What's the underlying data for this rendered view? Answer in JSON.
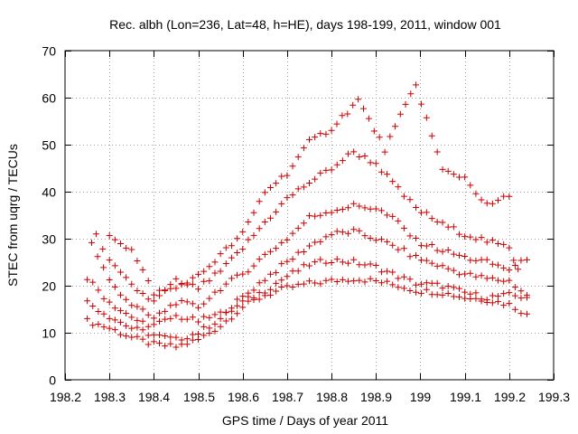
{
  "chart_data": {
    "type": "scatter",
    "title": "Rec. albh (Lon=236, Lat=48, h=HE), days 198-199, 2011, window 001",
    "xlabel": "GPS time / Days of year 2011",
    "ylabel": "STEC from uqrg / TECUs",
    "xlim": [
      198.2,
      199.3
    ],
    "ylim": [
      0,
      70
    ],
    "xticks": [
      198.2,
      198.3,
      198.4,
      198.5,
      198.6,
      198.7,
      198.8,
      198.9,
      199,
      199.1,
      199.2,
      199.3
    ],
    "xtick_labels": [
      "198.2",
      "198.3",
      "198.4",
      "198.5",
      "198.6",
      "198.7",
      "198.8",
      "198.9",
      "199",
      "199.1",
      "199.2",
      "199.3"
    ],
    "yticks": [
      0,
      10,
      20,
      30,
      40,
      50,
      60,
      70
    ],
    "ytick_labels": [
      "0",
      "10",
      "20",
      "30",
      "40",
      "50",
      "60",
      "70"
    ],
    "grid": true,
    "marker": "+",
    "color": "#cc0000",
    "tracks": [
      [
        [
          198.25,
          12.5
        ],
        [
          198.3,
          11.0
        ],
        [
          198.35,
          9.0
        ],
        [
          198.4,
          7.5
        ],
        [
          198.45,
          7.0
        ],
        [
          198.5,
          8.5
        ],
        [
          198.55,
          11.5
        ],
        [
          198.6,
          15.5
        ],
        [
          198.65,
          18.0
        ],
        [
          198.7,
          19.5
        ],
        [
          198.75,
          20.5
        ],
        [
          198.8,
          21.0
        ],
        [
          198.85,
          21.5
        ],
        [
          198.9,
          21.0
        ],
        [
          198.95,
          20.0
        ],
        [
          198.99,
          19.0
        ],
        [
          199.05,
          18.5
        ],
        [
          199.1,
          17.5
        ],
        [
          199.15,
          17.0
        ],
        [
          199.2,
          16.0
        ],
        [
          199.24,
          14.0
        ]
      ],
      [
        [
          198.25,
          16.5
        ],
        [
          198.3,
          13.5
        ],
        [
          198.35,
          11.0
        ],
        [
          198.4,
          9.5
        ],
        [
          198.45,
          8.5
        ],
        [
          198.5,
          10.0
        ],
        [
          198.55,
          13.0
        ],
        [
          198.6,
          16.5
        ],
        [
          198.65,
          19.0
        ],
        [
          198.7,
          22.0
        ],
        [
          198.75,
          24.5
        ],
        [
          198.8,
          25.5
        ],
        [
          198.85,
          25.0
        ],
        [
          198.9,
          24.0
        ],
        [
          198.95,
          22.0
        ],
        [
          198.99,
          20.5
        ],
        [
          199.05,
          20.0
        ],
        [
          199.1,
          18.5
        ],
        [
          199.15,
          17.5
        ],
        [
          199.2,
          18.0
        ],
        [
          199.24,
          17.5
        ]
      ],
      [
        [
          198.25,
          21.5
        ],
        [
          198.3,
          16.5
        ],
        [
          198.35,
          13.0
        ],
        [
          198.4,
          11.5
        ],
        [
          198.45,
          13.5
        ],
        [
          198.5,
          12.5
        ],
        [
          198.55,
          14.0
        ],
        [
          198.6,
          17.5
        ],
        [
          198.65,
          21.5
        ],
        [
          198.7,
          25.0
        ],
        [
          198.75,
          28.5
        ],
        [
          198.8,
          31.0
        ],
        [
          198.85,
          31.5
        ],
        [
          198.9,
          30.0
        ],
        [
          198.95,
          28.0
        ],
        [
          198.99,
          26.0
        ],
        [
          199.05,
          24.0
        ],
        [
          199.1,
          22.5
        ],
        [
          199.15,
          21.5
        ],
        [
          199.2,
          21.0
        ],
        [
          199.24,
          18.0
        ]
      ],
      [
        [
          198.26,
          29.0
        ],
        [
          198.3,
          21.0
        ],
        [
          198.35,
          16.0
        ],
        [
          198.4,
          13.0
        ],
        [
          198.45,
          16.5
        ],
        [
          198.5,
          15.5
        ],
        [
          198.55,
          19.5
        ],
        [
          198.6,
          22.5
        ],
        [
          198.65,
          26.5
        ],
        [
          198.7,
          30.0
        ],
        [
          198.75,
          34.5
        ],
        [
          198.8,
          36.0
        ],
        [
          198.85,
          37.0
        ],
        [
          198.9,
          36.5
        ],
        [
          198.95,
          33.5
        ],
        [
          198.99,
          29.5
        ],
        [
          199.05,
          27.5
        ],
        [
          199.1,
          26.0
        ],
        [
          199.15,
          25.0
        ],
        [
          199.2,
          23.5
        ],
        [
          199.24,
          25.5
        ]
      ],
      [
        [
          198.27,
          31.5
        ],
        [
          198.3,
          25.0
        ],
        [
          198.35,
          20.0
        ],
        [
          198.4,
          16.5
        ],
        [
          198.45,
          21.0
        ],
        [
          198.5,
          19.5
        ],
        [
          198.55,
          23.0
        ],
        [
          198.6,
          28.0
        ],
        [
          198.65,
          33.5
        ],
        [
          198.7,
          38.5
        ],
        [
          198.75,
          42.0
        ],
        [
          198.8,
          45.0
        ],
        [
          198.85,
          48.5
        ],
        [
          198.9,
          46.0
        ],
        [
          198.95,
          40.5
        ],
        [
          198.99,
          36.5
        ],
        [
          199.05,
          33.0
        ],
        [
          199.1,
          31.0
        ],
        [
          199.15,
          29.5
        ],
        [
          199.2,
          28.0
        ],
        [
          199.22,
          23.5
        ]
      ],
      [
        [
          198.3,
          31.0
        ],
        [
          198.35,
          27.5
        ],
        [
          198.4,
          18.5
        ],
        [
          198.45,
          19.5
        ],
        [
          198.5,
          22.0
        ],
        [
          198.6,
          31.0
        ],
        [
          198.65,
          40.0
        ],
        [
          198.7,
          44.0
        ],
        [
          198.75,
          50.5
        ],
        [
          198.8,
          53.5
        ],
        [
          198.86,
          59.5
        ],
        [
          198.92,
          49.0
        ],
        [
          198.99,
          62.8
        ],
        [
          199.05,
          44.5
        ],
        [
          199.1,
          43.0
        ],
        [
          199.15,
          37.0
        ],
        [
          199.2,
          39.0
        ]
      ]
    ]
  }
}
